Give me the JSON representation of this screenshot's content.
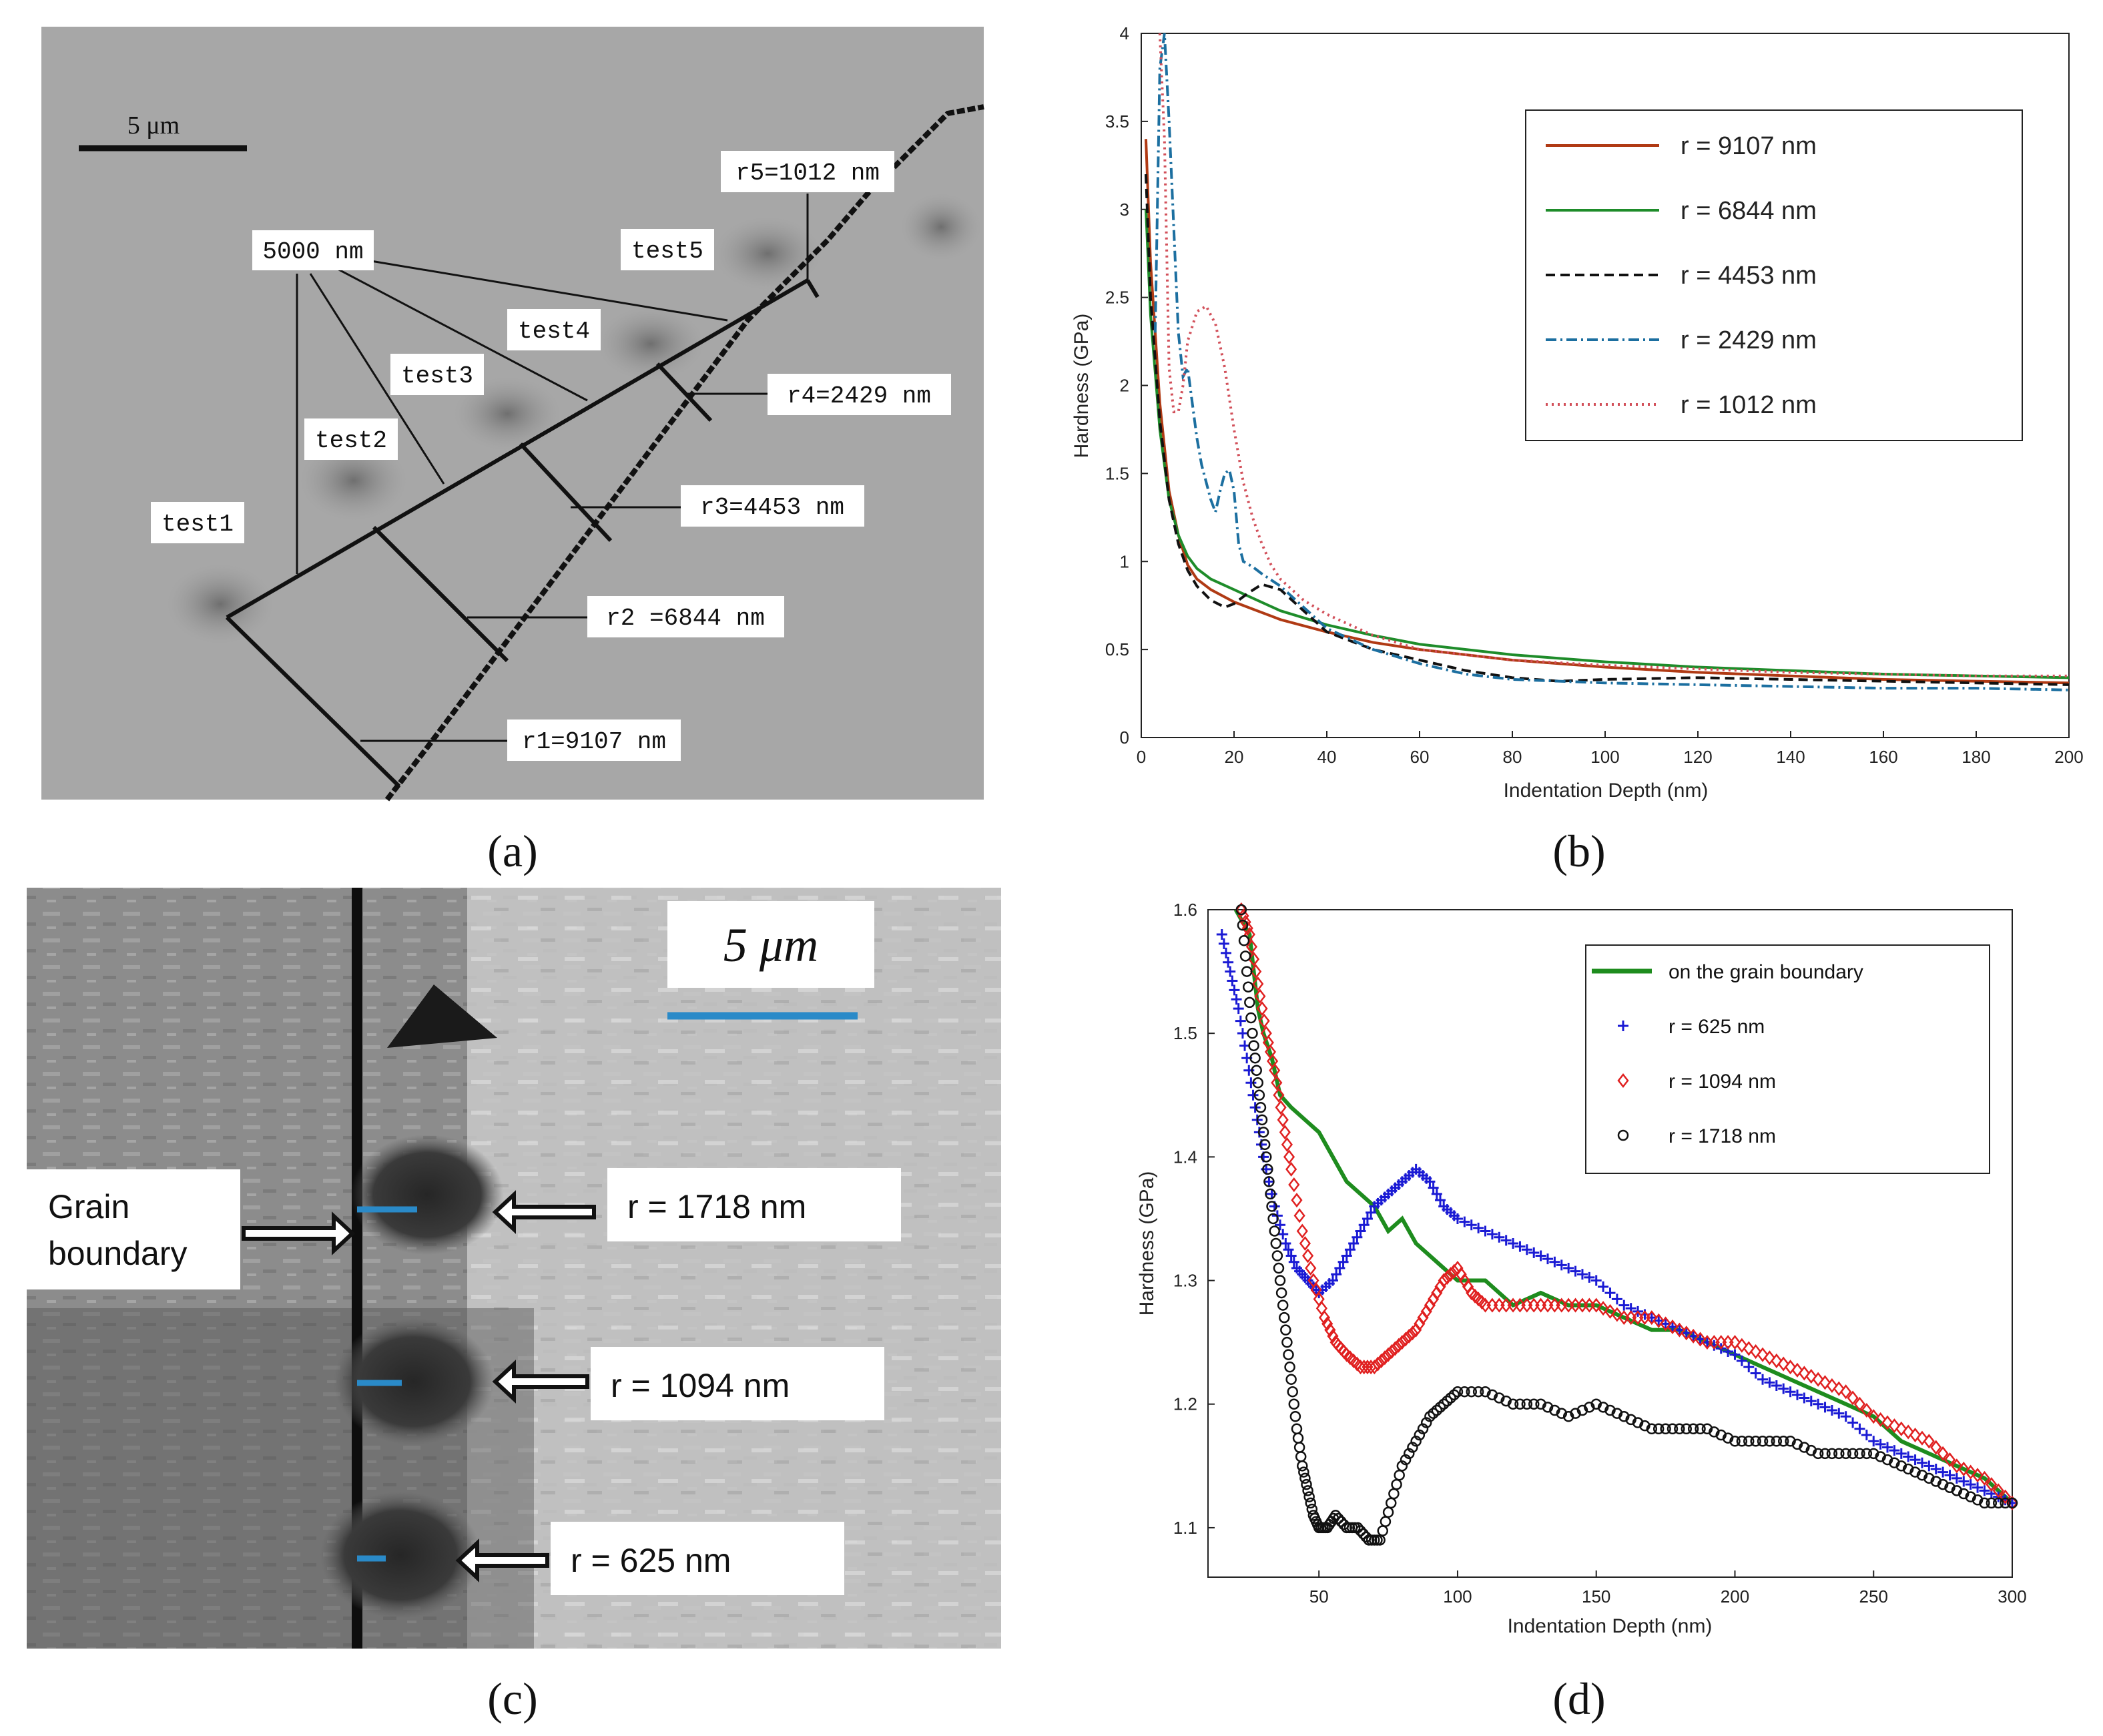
{
  "panel_labels": [
    "(a)",
    "(b)",
    "(c)",
    "(d)"
  ],
  "panel_a": {
    "scale_bar_label": "5 μm",
    "common_label": "5000 nm",
    "tests": [
      "test1",
      "test2",
      "test3",
      "test4",
      "test5"
    ],
    "radius_labels": [
      "r1=9107 nm",
      "r2 =6844 nm",
      "r3=4453 nm",
      "r4=2429 nm",
      "r5=1012 nm"
    ]
  },
  "panel_c": {
    "scale_bar_label": "5 μm",
    "grain_boundary_label": [
      "Grain",
      "boundary"
    ],
    "radius_labels": [
      "r = 1718 nm",
      "r = 1094 nm",
      "r = 625 nm"
    ]
  },
  "chart_data": [
    {
      "id": "b",
      "type": "line",
      "xlabel": "Indentation Depth (nm)",
      "ylabel": "Hardness (GPa)",
      "xlim": [
        0,
        200
      ],
      "ylim": [
        0,
        4
      ],
      "xticks": [
        0,
        20,
        40,
        60,
        80,
        100,
        120,
        140,
        160,
        180,
        200
      ],
      "yticks": [
        0,
        0.5,
        1,
        1.5,
        2,
        2.5,
        3,
        3.5,
        4
      ],
      "xtick_labels": [
        "0",
        "20",
        "40",
        "60",
        "80",
        "100",
        "120",
        "140",
        "160",
        "180",
        "200"
      ],
      "ytick_labels": [
        "0",
        "0.5",
        "1",
        "1.5",
        "2",
        "2.5",
        "3",
        "3.5",
        "4"
      ],
      "legend": "top-right",
      "series": [
        {
          "name": "r = 9107 nm",
          "color": "#b03a14",
          "dash": "",
          "x": [
            1,
            2,
            4,
            6,
            8,
            10,
            12,
            15,
            20,
            25,
            30,
            40,
            50,
            60,
            80,
            100,
            120,
            140,
            160,
            180,
            200
          ],
          "y": [
            3.4,
            2.7,
            1.9,
            1.4,
            1.15,
            0.98,
            0.9,
            0.84,
            0.77,
            0.72,
            0.67,
            0.6,
            0.54,
            0.5,
            0.44,
            0.4,
            0.37,
            0.35,
            0.33,
            0.32,
            0.31
          ]
        },
        {
          "name": "r = 6844 nm",
          "color": "#1e8c2a",
          "dash": "",
          "x": [
            1,
            2,
            4,
            6,
            8,
            10,
            12,
            15,
            20,
            25,
            30,
            40,
            50,
            60,
            80,
            100,
            120,
            140,
            160,
            180,
            200
          ],
          "y": [
            3.0,
            2.4,
            1.75,
            1.35,
            1.15,
            1.03,
            0.96,
            0.9,
            0.84,
            0.78,
            0.72,
            0.64,
            0.58,
            0.53,
            0.47,
            0.43,
            0.4,
            0.38,
            0.36,
            0.35,
            0.34
          ]
        },
        {
          "name": "r = 4453 nm",
          "color": "#111111",
          "dash": "14,8",
          "x": [
            1,
            2,
            4,
            6,
            8,
            10,
            12,
            15,
            18,
            20,
            23,
            26,
            30,
            35,
            40,
            50,
            60,
            70,
            80,
            90,
            100,
            120,
            140,
            160,
            180,
            200
          ],
          "y": [
            3.2,
            2.5,
            1.8,
            1.35,
            1.1,
            0.95,
            0.86,
            0.78,
            0.74,
            0.76,
            0.82,
            0.87,
            0.84,
            0.72,
            0.6,
            0.5,
            0.44,
            0.38,
            0.34,
            0.32,
            0.33,
            0.34,
            0.33,
            0.32,
            0.31,
            0.3
          ]
        },
        {
          "name": "r = 2429 nm",
          "color": "#1c6fa0",
          "dash": "16,6,3,6",
          "x": [
            3,
            4,
            5,
            6,
            7,
            8,
            9,
            10,
            11,
            12,
            13,
            14,
            15,
            16,
            17,
            18,
            19,
            20,
            21,
            22,
            24,
            26,
            30,
            35,
            40,
            50,
            60,
            70,
            80,
            100,
            120,
            140,
            160,
            180,
            200
          ],
          "y": [
            2.3,
            3.8,
            4.0,
            3.5,
            2.9,
            2.3,
            2.05,
            2.1,
            1.9,
            1.7,
            1.55,
            1.45,
            1.35,
            1.28,
            1.4,
            1.5,
            1.52,
            1.4,
            1.1,
            1.0,
            0.97,
            0.93,
            0.86,
            0.74,
            0.62,
            0.5,
            0.42,
            0.36,
            0.33,
            0.31,
            0.3,
            0.29,
            0.28,
            0.28,
            0.27
          ]
        },
        {
          "name": "r = 1012 nm",
          "color": "#d2505a",
          "dash": "3,6",
          "x": [
            4,
            5,
            6,
            7,
            8,
            9,
            10,
            12,
            14,
            16,
            18,
            20,
            22,
            24,
            26,
            28,
            30,
            35,
            40,
            50,
            60,
            80,
            100,
            120,
            140,
            160,
            180,
            200
          ],
          "y": [
            4.0,
            3.4,
            2.1,
            1.85,
            1.85,
            2.0,
            2.25,
            2.42,
            2.45,
            2.35,
            2.1,
            1.75,
            1.45,
            1.25,
            1.1,
            0.98,
            0.9,
            0.78,
            0.7,
            0.58,
            0.5,
            0.44,
            0.41,
            0.39,
            0.37,
            0.36,
            0.35,
            0.35
          ]
        }
      ]
    },
    {
      "id": "d",
      "type": "line",
      "xlabel": "Indentation Depth (nm)",
      "ylabel": "Hardness (GPa)",
      "xlim": [
        10,
        300
      ],
      "ylim": [
        1.06,
        1.6
      ],
      "xticks": [
        50,
        100,
        150,
        200,
        250,
        300
      ],
      "yticks": [
        1.1,
        1.2,
        1.3,
        1.4,
        1.5,
        1.6
      ],
      "xtick_labels": [
        "50",
        "100",
        "150",
        "200",
        "250",
        "300"
      ],
      "ytick_labels": [
        "1.1",
        "1.2",
        "1.3",
        "1.4",
        "1.5",
        "1.6"
      ],
      "legend": "top-right",
      "series": [
        {
          "name": "on the grain boundary",
          "color": "#1e8c1e",
          "marker": "line",
          "x": [
            20,
            25,
            28,
            30,
            33,
            36,
            40,
            45,
            50,
            55,
            60,
            65,
            70,
            75,
            80,
            85,
            90,
            95,
            100,
            110,
            120,
            130,
            140,
            150,
            160,
            170,
            180,
            190,
            200,
            210,
            220,
            230,
            240,
            250,
            260,
            270,
            280,
            290,
            300
          ],
          "y": [
            1.6,
            1.58,
            1.52,
            1.5,
            1.48,
            1.45,
            1.44,
            1.43,
            1.42,
            1.4,
            1.38,
            1.37,
            1.36,
            1.34,
            1.35,
            1.33,
            1.32,
            1.31,
            1.3,
            1.3,
            1.28,
            1.29,
            1.28,
            1.28,
            1.27,
            1.26,
            1.26,
            1.25,
            1.24,
            1.23,
            1.22,
            1.21,
            1.2,
            1.19,
            1.17,
            1.16,
            1.15,
            1.14,
            1.12
          ]
        },
        {
          "name": "r = 625 nm",
          "color": "#1a1ad4",
          "marker": "plus",
          "x": [
            15,
            18,
            21,
            24,
            27,
            30,
            34,
            38,
            42,
            46,
            50,
            55,
            60,
            65,
            70,
            75,
            80,
            85,
            90,
            95,
            100,
            110,
            120,
            130,
            140,
            150,
            160,
            170,
            180,
            190,
            200,
            210,
            220,
            230,
            240,
            250,
            260,
            270,
            280,
            290,
            300
          ],
          "y": [
            1.58,
            1.55,
            1.52,
            1.48,
            1.44,
            1.4,
            1.36,
            1.33,
            1.31,
            1.3,
            1.29,
            1.3,
            1.32,
            1.34,
            1.36,
            1.37,
            1.38,
            1.39,
            1.38,
            1.36,
            1.35,
            1.34,
            1.33,
            1.32,
            1.31,
            1.3,
            1.28,
            1.27,
            1.26,
            1.25,
            1.24,
            1.22,
            1.21,
            1.2,
            1.19,
            1.17,
            1.16,
            1.15,
            1.14,
            1.13,
            1.12
          ]
        },
        {
          "name": "r = 1094 nm",
          "color": "#e02020",
          "marker": "diamond",
          "x": [
            22,
            25,
            28,
            31,
            34,
            37,
            40,
            44,
            48,
            52,
            56,
            60,
            65,
            70,
            75,
            80,
            85,
            90,
            95,
            100,
            105,
            110,
            120,
            130,
            140,
            150,
            160,
            170,
            180,
            190,
            200,
            210,
            220,
            230,
            240,
            250,
            260,
            270,
            280,
            290,
            300
          ],
          "y": [
            1.6,
            1.58,
            1.54,
            1.5,
            1.47,
            1.43,
            1.39,
            1.34,
            1.3,
            1.27,
            1.25,
            1.24,
            1.23,
            1.23,
            1.24,
            1.25,
            1.26,
            1.28,
            1.3,
            1.31,
            1.29,
            1.28,
            1.28,
            1.28,
            1.28,
            1.28,
            1.27,
            1.27,
            1.26,
            1.25,
            1.25,
            1.24,
            1.23,
            1.22,
            1.21,
            1.19,
            1.18,
            1.17,
            1.15,
            1.14,
            1.12
          ]
        },
        {
          "name": "r = 1718 nm",
          "color": "#111111",
          "marker": "circle",
          "x": [
            22,
            24,
            26,
            28,
            30,
            32,
            34,
            36,
            38,
            40,
            42,
            44,
            46,
            48,
            50,
            53,
            56,
            60,
            64,
            68,
            72,
            76,
            80,
            85,
            90,
            95,
            100,
            110,
            120,
            130,
            140,
            150,
            160,
            170,
            180,
            190,
            200,
            210,
            220,
            230,
            240,
            250,
            260,
            270,
            280,
            290,
            300
          ],
          "y": [
            1.6,
            1.55,
            1.5,
            1.46,
            1.42,
            1.38,
            1.34,
            1.3,
            1.26,
            1.22,
            1.18,
            1.15,
            1.13,
            1.11,
            1.1,
            1.1,
            1.11,
            1.1,
            1.1,
            1.09,
            1.09,
            1.12,
            1.15,
            1.17,
            1.19,
            1.2,
            1.21,
            1.21,
            1.2,
            1.2,
            1.19,
            1.2,
            1.19,
            1.18,
            1.18,
            1.18,
            1.17,
            1.17,
            1.17,
            1.16,
            1.16,
            1.16,
            1.15,
            1.14,
            1.13,
            1.12,
            1.12
          ]
        }
      ]
    }
  ]
}
